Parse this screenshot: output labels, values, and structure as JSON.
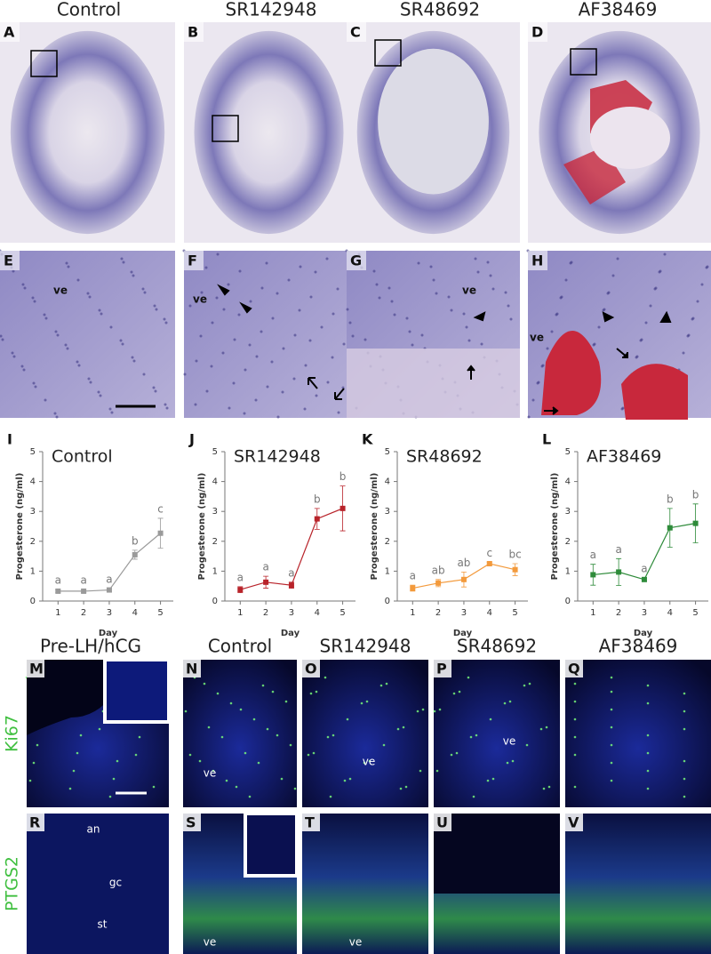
{
  "figure": {
    "top_titles": [
      "Control",
      "SR142948",
      "SR48692",
      "AF38469"
    ],
    "row1": [
      {
        "letter": "A"
      },
      {
        "letter": "B"
      },
      {
        "letter": "C"
      },
      {
        "letter": "D"
      }
    ],
    "row2": [
      {
        "letter": "E",
        "labels": [
          "ve"
        ]
      },
      {
        "letter": "F",
        "labels": [
          "ve"
        ]
      },
      {
        "letter": "G",
        "labels": [
          "ve"
        ]
      },
      {
        "letter": "H",
        "labels": [
          "ve"
        ]
      }
    ],
    "bottom_titles": [
      "Pre-LH/hCG",
      "Control",
      "SR142948",
      "SR48692",
      "AF38469"
    ],
    "row_labels": [
      "Ki67",
      "PTGS2"
    ],
    "row3": [
      {
        "letter": "M"
      },
      {
        "letter": "N",
        "labels": [
          "ve"
        ]
      },
      {
        "letter": "O",
        "labels": [
          "ve"
        ]
      },
      {
        "letter": "P",
        "labels": [
          "ve"
        ]
      },
      {
        "letter": "Q"
      }
    ],
    "row4": [
      {
        "letter": "R",
        "labels": [
          "an",
          "gc",
          "st"
        ]
      },
      {
        "letter": "S",
        "labels": [
          "ve"
        ]
      },
      {
        "letter": "T",
        "labels": [
          "ve"
        ]
      },
      {
        "letter": "U"
      },
      {
        "letter": "V"
      }
    ]
  },
  "chart_data": [
    {
      "type": "line",
      "panel": "I",
      "title": "Control",
      "x_label": "Day",
      "y_label": "Progesterone (ng/ml)",
      "x": [
        1,
        2,
        3,
        4,
        5
      ],
      "values": [
        0.33,
        0.33,
        0.37,
        1.55,
        2.27
      ],
      "errors": [
        0.05,
        0.05,
        0.05,
        0.15,
        0.5
      ],
      "annotations": [
        "a",
        "a",
        "a",
        "b",
        "c"
      ],
      "color": "#9a9a9a",
      "xlim": [
        0.4,
        5.5
      ],
      "xticks": [
        1,
        2,
        3,
        4,
        5
      ],
      "ylim": [
        0,
        5
      ],
      "yticks": [
        0,
        1,
        2,
        3,
        4,
        5
      ]
    },
    {
      "type": "line",
      "panel": "J",
      "title": "SR142948",
      "x_label": "Day",
      "y_label": "Progesterone (ng/ml)",
      "x": [
        1,
        2,
        3,
        4,
        5
      ],
      "values": [
        0.38,
        0.63,
        0.53,
        2.75,
        3.1
      ],
      "errors": [
        0.1,
        0.2,
        0.1,
        0.35,
        0.75
      ],
      "annotations": [
        "a",
        "a",
        "a",
        "b",
        "b"
      ],
      "color": "#b8232a",
      "xlim": [
        0.4,
        5.5
      ],
      "xticks": [
        1,
        2,
        3,
        4,
        5
      ],
      "ylim": [
        0,
        5
      ],
      "yticks": [
        0,
        1,
        2,
        3,
        4,
        5
      ]
    },
    {
      "type": "line",
      "panel": "K",
      "title": "SR48692",
      "x_label": "Day",
      "y_label": "Progesterone (ng/ml)",
      "x": [
        1,
        2,
        3,
        4,
        5
      ],
      "values": [
        0.43,
        0.6,
        0.72,
        1.25,
        1.05
      ],
      "errors": [
        0.1,
        0.12,
        0.25,
        0.05,
        0.2
      ],
      "annotations": [
        "a",
        "ab",
        "ab",
        "c",
        "bc"
      ],
      "color": "#f39a3c",
      "xlim": [
        0.4,
        5.5
      ],
      "xticks": [
        1,
        2,
        3,
        4,
        5
      ],
      "ylim": [
        0,
        5
      ],
      "yticks": [
        0,
        1,
        2,
        3,
        4,
        5
      ]
    },
    {
      "type": "line",
      "panel": "L",
      "title": "AF38469",
      "x_label": "Day",
      "y_label": "Progesterone (ng/ml)",
      "x": [
        1,
        2,
        3,
        4,
        5
      ],
      "values": [
        0.88,
        0.97,
        0.72,
        2.45,
        2.6
      ],
      "errors": [
        0.35,
        0.45,
        0.05,
        0.65,
        0.65
      ],
      "annotations": [
        "a",
        "a",
        "a",
        "b",
        "b"
      ],
      "color": "#2e8b3a",
      "xlim": [
        0.4,
        5.5
      ],
      "xticks": [
        1,
        2,
        3,
        4,
        5
      ],
      "ylim": [
        0,
        5
      ],
      "yticks": [
        0,
        1,
        2,
        3,
        4,
        5
      ]
    }
  ]
}
